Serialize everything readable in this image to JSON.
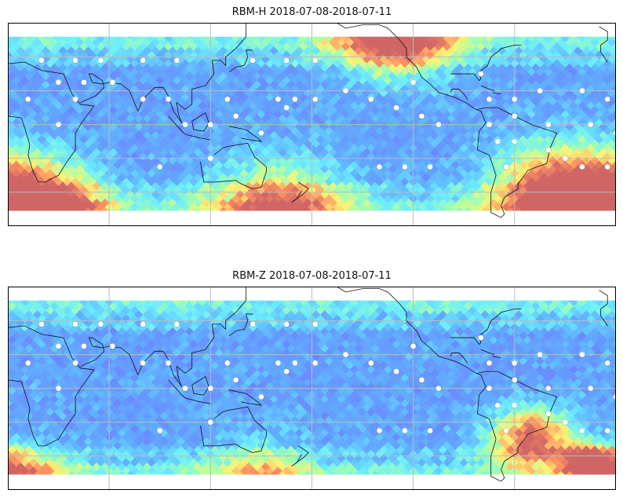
{
  "chart_data": [
    {
      "type": "heatmap",
      "title": "RBM-H 2018-07-08-2018-07-11",
      "lon_range": [
        0,
        360
      ],
      "lat_range": [
        -60,
        60
      ],
      "gridlines_lon": [
        60,
        120,
        180,
        240,
        300
      ],
      "gridlines_lat": [
        -40,
        -20,
        0,
        20,
        40
      ],
      "hotspots": [
        {
          "lon": 20,
          "lat": -50,
          "value": 1.0,
          "spread": 35
        },
        {
          "lon": 230,
          "lat": 55,
          "value": 0.9,
          "spread": 35
        },
        {
          "lon": 330,
          "lat": -42,
          "value": 1.0,
          "spread": 40
        },
        {
          "lon": 160,
          "lat": -52,
          "value": 0.7,
          "spread": 40
        }
      ]
    },
    {
      "type": "heatmap",
      "title": "RBM-Z 2018-07-08-2018-07-11",
      "lon_range": [
        0,
        360
      ],
      "lat_range": [
        -60,
        60
      ],
      "gridlines_lon": [
        60,
        120,
        180,
        240,
        300
      ],
      "gridlines_lat": [
        -40,
        -20,
        0,
        20,
        40
      ],
      "hotspots": [
        {
          "lon": 310,
          "lat": -30,
          "value": 0.8,
          "spread": 25
        },
        {
          "lon": 345,
          "lat": -45,
          "value": 1.0,
          "spread": 15
        },
        {
          "lon": 10,
          "lat": -52,
          "value": 0.5,
          "spread": 25
        },
        {
          "lon": 150,
          "lat": -52,
          "value": 0.4,
          "spread": 30
        }
      ]
    }
  ]
}
